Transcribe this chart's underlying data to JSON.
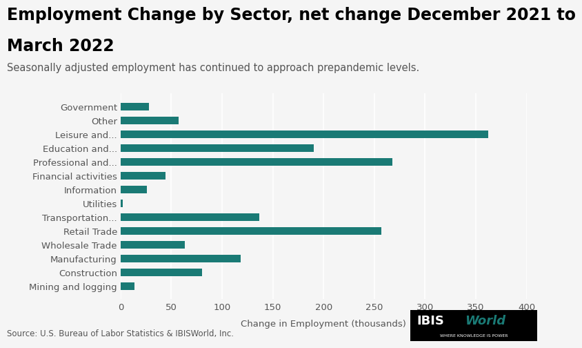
{
  "title_line1": "Employment Change by Sector, net change December 2021 to",
  "title_line2": "March 2022",
  "subtitle": "Seasonally adjusted employment has continued to approach prepandemic levels.",
  "xlabel": "Change in Employment (thousands)",
  "source": "Source: U.S. Bureau of Labor Statistics & IBISWorld, Inc.",
  "categories": [
    "Government",
    "Other",
    "Leisure and...",
    "Education and...",
    "Professional and...",
    "Financial activities",
    "Information",
    "Utilities",
    "Transportation...",
    "Retail Trade",
    "Wholesale Trade",
    "Manufacturing",
    "Construction",
    "Mining and logging"
  ],
  "values": [
    28,
    57,
    362,
    190,
    268,
    44,
    26,
    2,
    137,
    257,
    63,
    118,
    80,
    14
  ],
  "bar_color": "#1a7a75",
  "background_color": "#f5f5f5",
  "xlim": [
    0,
    400
  ],
  "xticks": [
    0,
    50,
    100,
    150,
    200,
    250,
    300,
    350,
    400
  ],
  "title_fontsize": 17,
  "subtitle_fontsize": 10.5,
  "label_fontsize": 9.5,
  "tick_fontsize": 9.5,
  "source_fontsize": 8.5
}
